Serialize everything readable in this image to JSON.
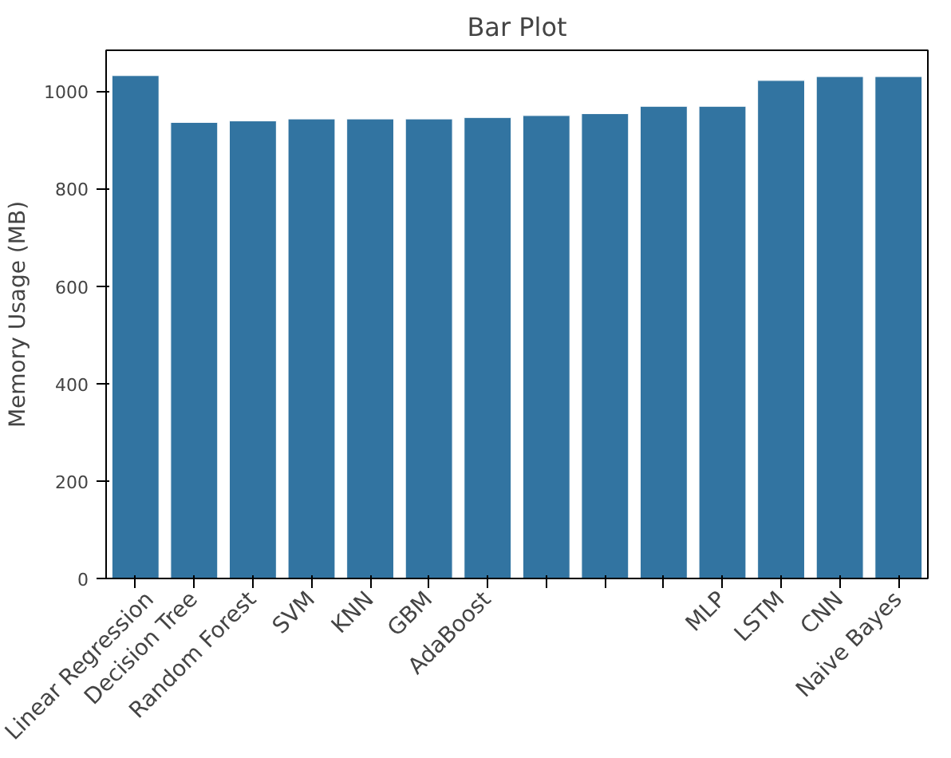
{
  "chart_data": {
    "type": "bar",
    "title": "Bar Plot",
    "ylabel": "Memory Usage (MB)",
    "categories": [
      "Linear Regression",
      "Decision Tree",
      "Random Forest",
      "SVM",
      "KNN",
      "GBM",
      "AdaBoost",
      null,
      null,
      null,
      "MLP",
      "LSTM",
      "CNN",
      "Naive Bayes"
    ],
    "values": [
      1032,
      936,
      939,
      943,
      943,
      943,
      946,
      950,
      954,
      969,
      969,
      1022,
      1030,
      1030
    ],
    "color": "#3274a1",
    "ylim": [
      0,
      1084
    ],
    "yticks": [
      0,
      200,
      400,
      600,
      800,
      1000
    ],
    "grid": false
  }
}
